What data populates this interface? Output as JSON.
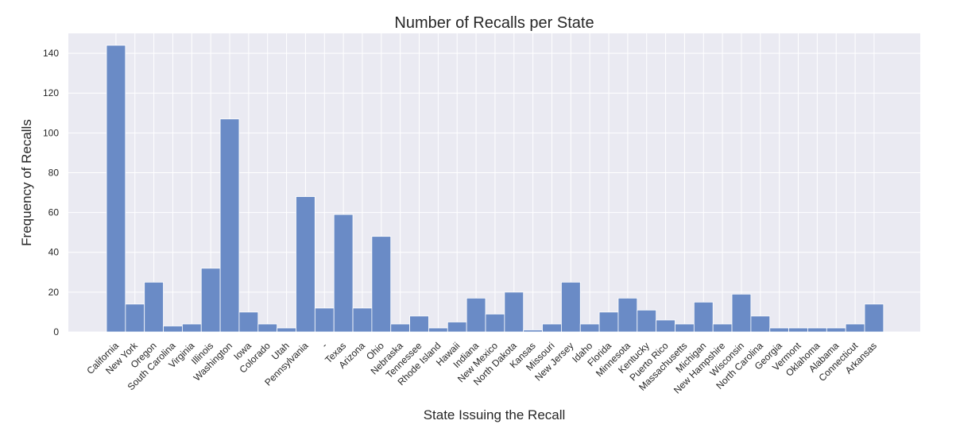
{
  "chart_data": {
    "type": "bar",
    "title": "Number of Recalls per State",
    "xlabel": "State Issuing the Recall",
    "ylabel": "Frequency of Recalls",
    "ylim": [
      0,
      150
    ],
    "yticks": [
      0,
      20,
      40,
      60,
      80,
      100,
      120,
      140
    ],
    "grid": true,
    "legend": "none",
    "categories": [
      "California",
      "New York",
      "Oregon",
      "South Carolina",
      "Virginia",
      "Illinois",
      "Washington",
      "Iowa",
      "Colorado",
      "Utah",
      "Pennsylvania",
      "-",
      "Texas",
      "Arizona",
      "Ohio",
      "Nebraska",
      "Tennessee",
      "Rhode Island",
      "Hawaii",
      "Indiana",
      "New Mexico",
      "North Dakota",
      "Kansas",
      "Missouri",
      "New Jersey",
      "Idaho",
      "Florida",
      "Minnesota",
      "Kentucky",
      "Puerto Rico",
      "Massachusetts",
      "Michigan",
      "New Hampshire",
      "Wisconsin",
      "North Carolina",
      "Georgia",
      "Vermont",
      "Oklahoma",
      "Alabama",
      "Connecticut",
      "Arkansas"
    ],
    "values": [
      144,
      14,
      25,
      3,
      4,
      32,
      107,
      10,
      4,
      2,
      68,
      12,
      59,
      12,
      48,
      4,
      8,
      2,
      5,
      17,
      9,
      20,
      1,
      4,
      25,
      4,
      10,
      17,
      11,
      6,
      4,
      15,
      4,
      19,
      8,
      2,
      2,
      2,
      2,
      4,
      14
    ],
    "colors": {
      "bar": "#6a8bc6",
      "bar_edge": "#ffffff",
      "plot_bg": "#eaeaf2",
      "grid": "#ffffff"
    }
  }
}
